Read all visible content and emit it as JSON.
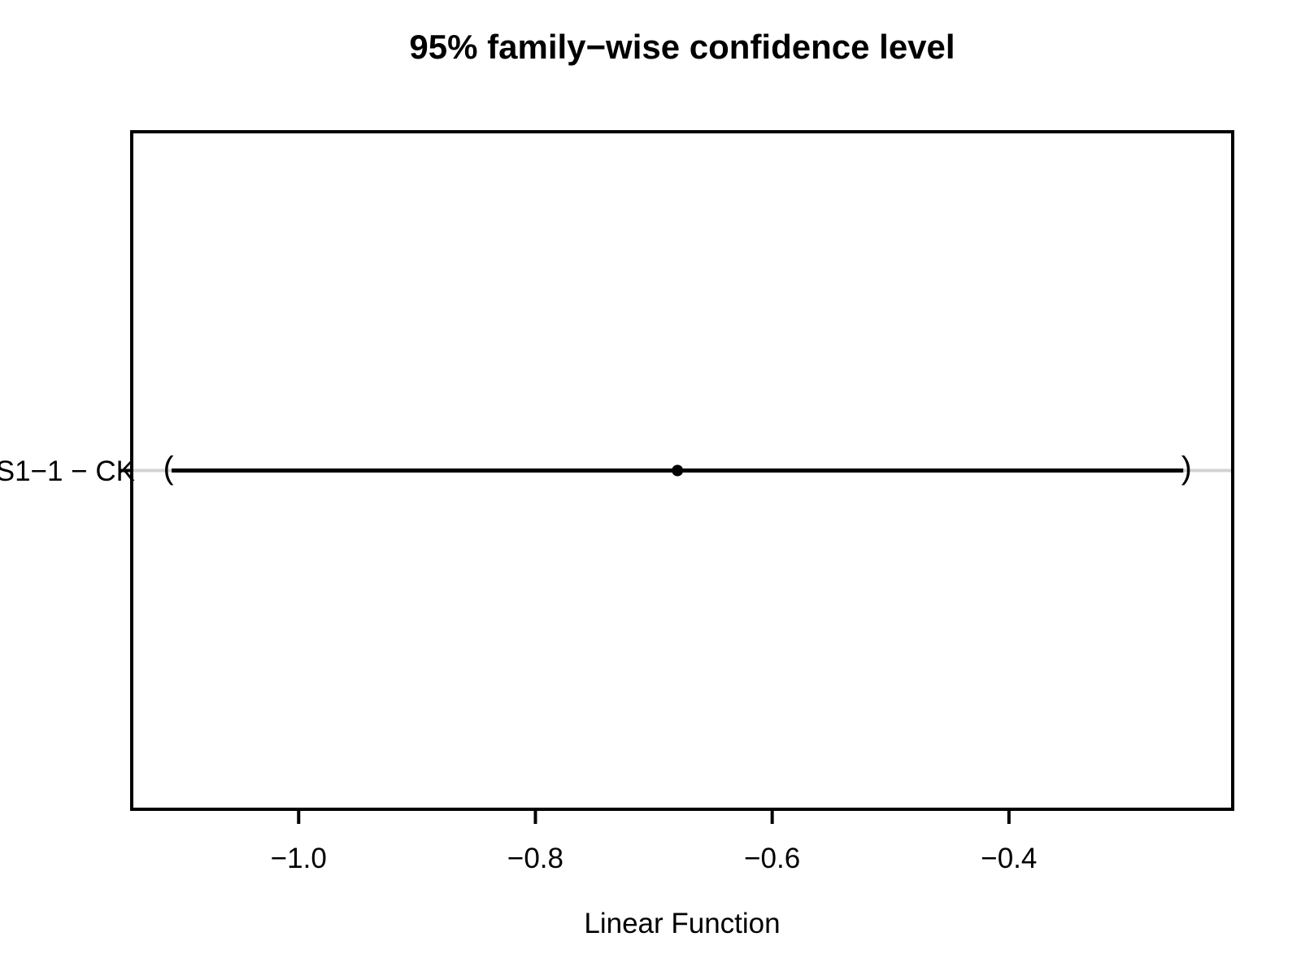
{
  "chart_data": {
    "type": "scatter",
    "subtype": "confidence-interval-plot",
    "title": "95% family−wise confidence level",
    "xlabel": "Linear Function",
    "ylabel": "",
    "comparisons": [
      {
        "label": "S1−1 − CK",
        "estimate": -0.68,
        "lower": -1.11,
        "upper": -0.25
      }
    ],
    "xlim": [
      -1.141,
      -0.211
    ],
    "x_ticks": [
      -1.0,
      -0.8,
      -0.6,
      -0.4
    ],
    "x_tick_labels": [
      "−1.0",
      "−0.8",
      "−0.6",
      "−0.4"
    ],
    "interval_end_markers": [
      "(",
      ")"
    ],
    "grid": false,
    "legend": null,
    "colors": {
      "interval": "#000000",
      "estimate_point": "#000000",
      "reference_line": "#d3d3d3",
      "axis": "#000000",
      "text": "#000000",
      "background": "#ffffff"
    }
  }
}
